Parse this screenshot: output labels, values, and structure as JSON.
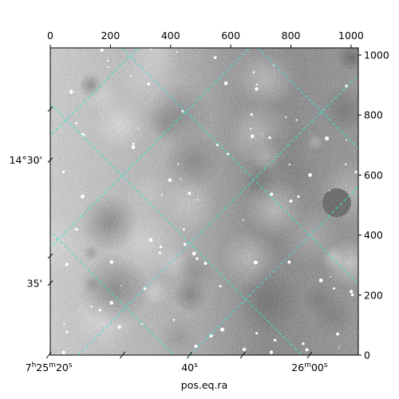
{
  "chart_data": {
    "type": "heatmap",
    "title": "",
    "xlabel": "pos.eq.ra",
    "ylabel": "",
    "pixel_xlim": [
      0,
      1024
    ],
    "pixel_ylim": [
      0,
      1024
    ],
    "top_ticks": [
      {
        "value": 0,
        "label": "0"
      },
      {
        "value": 200,
        "label": "200"
      },
      {
        "value": 400,
        "label": "400"
      },
      {
        "value": 600,
        "label": "600"
      },
      {
        "value": 800,
        "label": "800"
      },
      {
        "value": 1000,
        "label": "1000"
      }
    ],
    "right_ticks": [
      {
        "value": 0,
        "label": "0"
      },
      {
        "value": 200,
        "label": "200"
      },
      {
        "value": 400,
        "label": "400"
      },
      {
        "value": 600,
        "label": "600"
      },
      {
        "value": 800,
        "label": "800"
      },
      {
        "value": 1000,
        "label": "1000"
      }
    ],
    "ra_ticks": [
      {
        "pixel": -5,
        "label_main": "7",
        "sup1": "h",
        "mid1": "25",
        "sup2": "m",
        "mid2": "20",
        "sup3": "s"
      },
      {
        "pixel": 463,
        "label_main": "",
        "sup1": "",
        "mid1": "",
        "sup2": "",
        "mid2": "40",
        "sup3": "s"
      },
      {
        "pixel": 862,
        "label_main": "",
        "sup1": "",
        "mid1": "26",
        "sup2": "m",
        "mid2": "00",
        "sup3": "s"
      }
    ],
    "dec_ticks": [
      {
        "pixel": 650,
        "label": "14°30'"
      },
      {
        "pixel": 240,
        "label": "35'"
      }
    ],
    "grid": true,
    "grid_color": "#40e0d0",
    "colormap": "gray"
  }
}
